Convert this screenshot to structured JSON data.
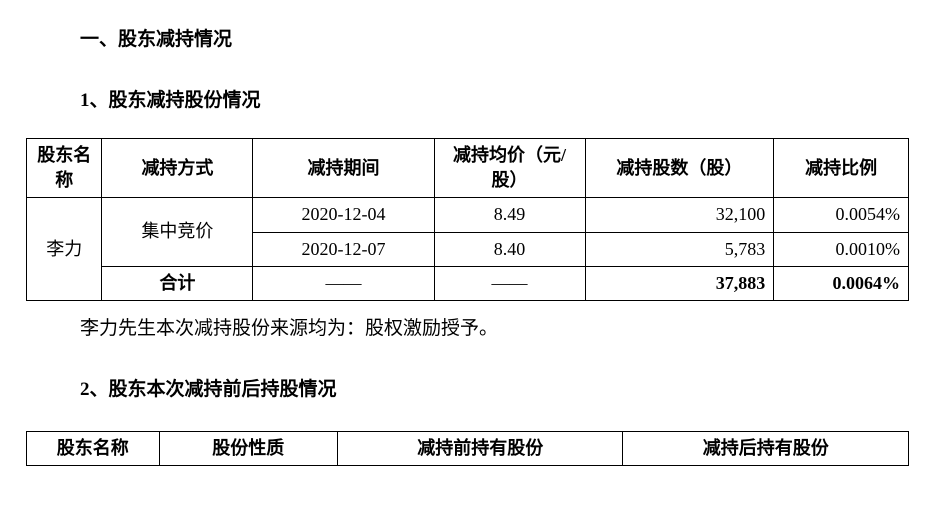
{
  "headings": {
    "section": "一、股东减持情况",
    "sub1": "1、股东减持股份情况",
    "sub2": "2、股东本次减持前后持股情况"
  },
  "footnote": "李力先生本次减持股份来源均为：股权激励授予。",
  "table1": {
    "headers": {
      "c1": "股东名称",
      "c2": "减持方式",
      "c3": "减持期间",
      "c4": "减持均价（元/股）",
      "c5": "减持股数（股）",
      "c6": "减持比例"
    },
    "shareholder": "李力",
    "method": "集中竞价",
    "rows": [
      {
        "period": "2020-12-04",
        "price": "8.49",
        "shares": "32,100",
        "ratio": "0.0054%"
      },
      {
        "period": "2020-12-07",
        "price": "8.40",
        "shares": "5,783",
        "ratio": "0.0010%"
      }
    ],
    "total": {
      "label": "合计",
      "period": "——",
      "price": "——",
      "shares": "37,883",
      "ratio": "0.0064%"
    }
  },
  "table2": {
    "headers": {
      "c1": "股东名称",
      "c2": "股份性质",
      "c3": "减持前持有股份",
      "c4": "减持后持有股份"
    }
  },
  "style": {
    "border_color": "#000000",
    "bg_color": "#ffffff",
    "font_color": "#000000",
    "base_font_size": 19,
    "table_font_size": 18
  }
}
